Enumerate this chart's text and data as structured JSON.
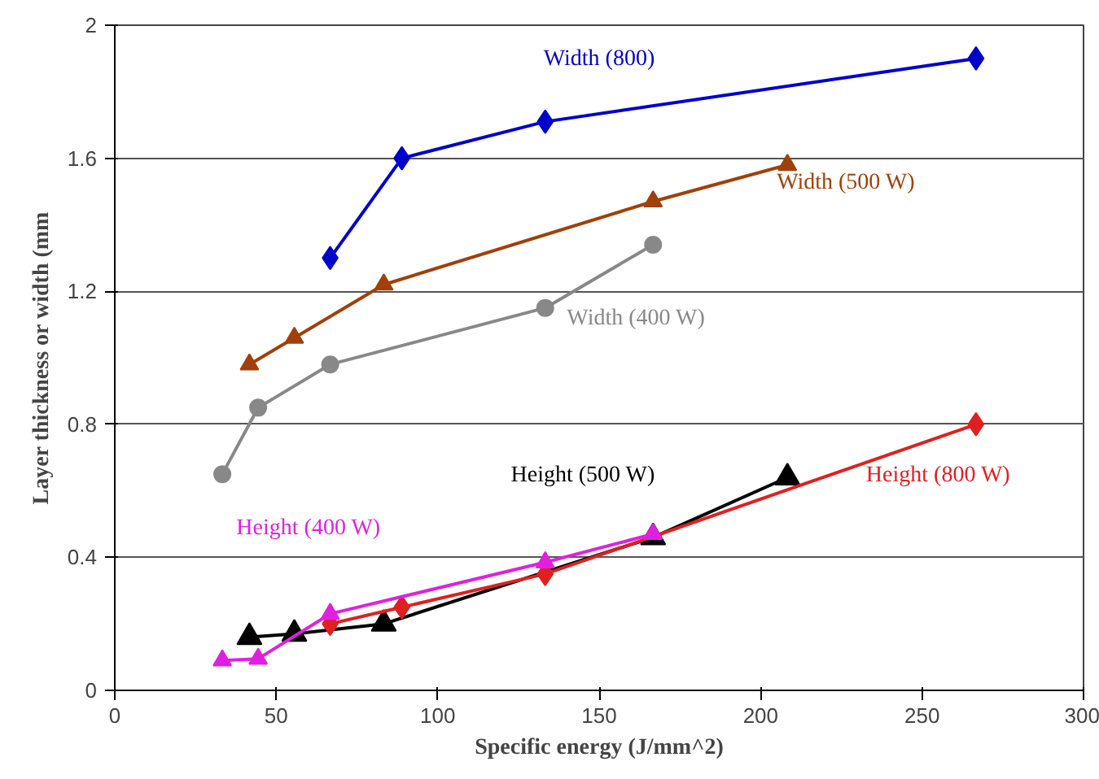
{
  "chart_data": {
    "type": "line",
    "xlabel": "Specific energy (J/mm^2)",
    "ylabel": "Layer thickness or width (mm",
    "xlim": [
      0,
      300
    ],
    "ylim": [
      0,
      2
    ],
    "xticks": [
      0,
      50,
      100,
      150,
      200,
      250,
      300
    ],
    "yticks": [
      0,
      0.4,
      0.8,
      1.2,
      1.6,
      2
    ],
    "grid": "y",
    "line_style": "solid",
    "series": [
      {
        "name": "Width (800)",
        "color": "#0000cc",
        "marker": "diamond",
        "x": [
          66.7,
          88.9,
          133.3,
          266.7
        ],
        "values": [
          1.3,
          1.6,
          1.71,
          1.9
        ]
      },
      {
        "name": "Width (500 W)",
        "color": "#a0400a",
        "marker": "triangle",
        "x": [
          41.7,
          55.6,
          83.3,
          166.7,
          208.3
        ],
        "values": [
          0.98,
          1.06,
          1.22,
          1.47,
          1.58
        ]
      },
      {
        "name": "Width (400 W)",
        "color": "#888888",
        "marker": "circle",
        "x": [
          33.3,
          44.4,
          66.7,
          133.3,
          166.7
        ],
        "values": [
          0.65,
          0.85,
          0.98,
          1.15,
          1.34
        ]
      },
      {
        "name": "Height (500 W)",
        "color": "#000000",
        "marker": "triangle",
        "x": [
          41.7,
          55.6,
          83.3,
          166.7,
          208.3
        ],
        "values": [
          0.16,
          0.17,
          0.2,
          0.46,
          0.64
        ]
      },
      {
        "name": "Height (800 W)",
        "color": "#e02020",
        "marker": "diamond",
        "x": [
          66.7,
          88.9,
          133.3,
          266.7
        ],
        "values": [
          0.2,
          0.25,
          0.35,
          0.8
        ]
      },
      {
        "name": "Height (400 W)",
        "color": "#e020e0",
        "marker": "triangle",
        "x": [
          33.3,
          44.4,
          66.7,
          133.3,
          166.7
        ],
        "values": [
          0.09,
          0.095,
          0.23,
          0.385,
          0.47
        ]
      }
    ]
  }
}
